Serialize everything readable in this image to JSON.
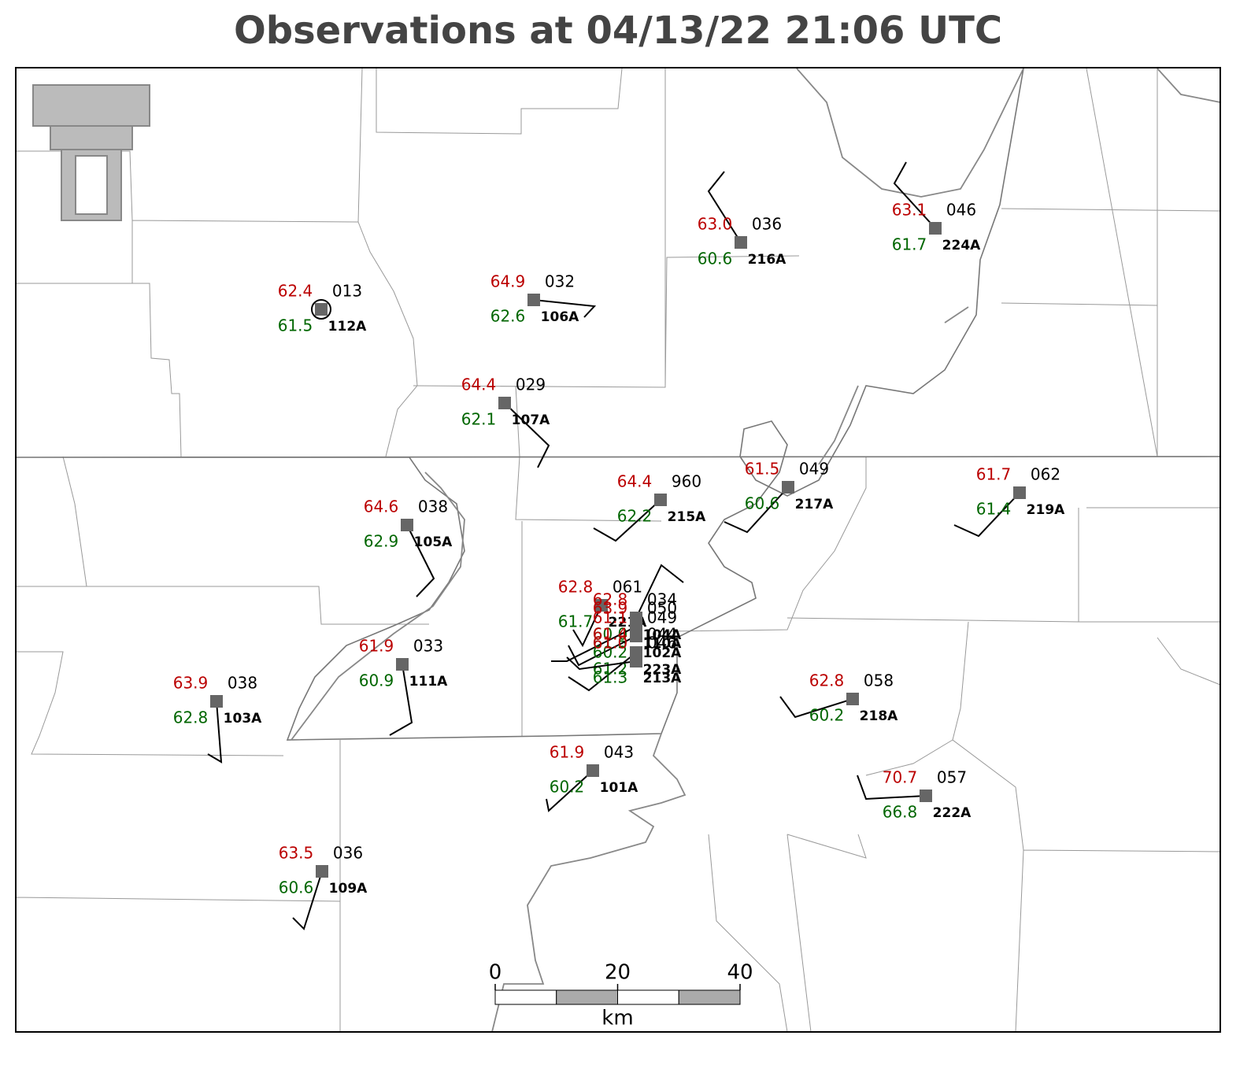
{
  "title": "Observations at 04/13/22 21:06 UTC",
  "stations": [
    {
      "id": "112A",
      "temp": "62.4",
      "pressure": "013",
      "dewpoint": "61.5"
    },
    {
      "id": "106A",
      "temp": "64.9",
      "pressure": "032",
      "dewpoint": "62.6"
    },
    {
      "id": "107A",
      "temp": "64.4",
      "pressure": "029",
      "dewpoint": "62.1"
    },
    {
      "id": "216A",
      "temp": "63.0",
      "pressure": "036",
      "dewpoint": "60.6"
    },
    {
      "id": "224A",
      "temp": "63.1",
      "pressure": "046",
      "dewpoint": "61.7"
    },
    {
      "id": "215A",
      "temp": "64.4",
      "pressure": "960",
      "dewpoint": "62.2"
    },
    {
      "id": "217A",
      "temp": "61.5",
      "pressure": "049",
      "dewpoint": "60.6"
    },
    {
      "id": "219A",
      "temp": "61.7",
      "pressure": "062",
      "dewpoint": "61.4"
    },
    {
      "id": "105A",
      "temp": "64.6",
      "pressure": "038",
      "dewpoint": "62.9"
    },
    {
      "id": "111A",
      "temp": "61.9",
      "pressure": "033",
      "dewpoint": "60.9"
    },
    {
      "id": "103A",
      "temp": "63.9",
      "pressure": "038",
      "dewpoint": "62.8"
    },
    {
      "id": "218A",
      "temp": "62.8",
      "pressure": "058",
      "dewpoint": "60.2"
    },
    {
      "id": "101A",
      "temp": "61.9",
      "pressure": "043",
      "dewpoint": "60.2"
    },
    {
      "id": "222A",
      "temp": "70.7",
      "pressure": "057",
      "dewpoint": "66.8"
    },
    {
      "id": "109A",
      "temp": "63.5",
      "pressure": "036",
      "dewpoint": "60.6"
    },
    {
      "id": "221A",
      "temp": "62.8",
      "pressure": "061",
      "dewpoint": "61.7"
    },
    {
      "id": "104A",
      "temp": "62.8",
      "pressure": "034",
      "dewpoint": "60.0"
    },
    {
      "id": "110A",
      "temp": "63.9",
      "pressure": "050",
      "dewpoint": "61.5"
    },
    {
      "id": "102A",
      "temp": "61.1",
      "pressure": "049",
      "dewpoint": "60.2"
    },
    {
      "id": "223A",
      "temp": "61.4",
      "pressure": "044",
      "dewpoint": "61.2"
    },
    {
      "id": "213A",
      "temp": "61.0",
      "pressure": "046",
      "dewpoint": "61.3"
    }
  ],
  "scale_bar": {
    "ticks": [
      0,
      20,
      40
    ],
    "unit": "km"
  }
}
